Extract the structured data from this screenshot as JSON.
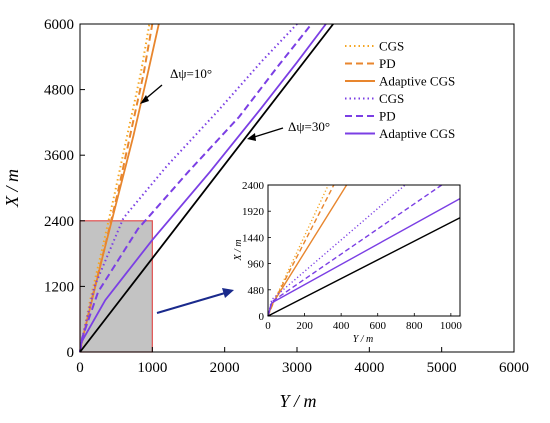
{
  "chart_data": {
    "type": "line",
    "xlabel": "Y / m",
    "ylabel": "X / m",
    "xlim": [
      0,
      6000
    ],
    "ylim": [
      0,
      6000
    ],
    "xticks": [
      "0",
      "1000",
      "2000",
      "3000",
      "4000",
      "5000",
      "6000"
    ],
    "yticks": [
      "0",
      "1200",
      "2400",
      "3600",
      "4800",
      "6000"
    ],
    "legend_position": "top-right",
    "legend": [
      {
        "label": "CGS",
        "style": "dotted",
        "color": "#F5A623"
      },
      {
        "label": "PD",
        "style": "dashed",
        "color": "#E8862E"
      },
      {
        "label": "Adaptive CGS",
        "style": "solid",
        "color": "#E8862E"
      },
      {
        "label": "CGS",
        "style": "dotted",
        "color": "#7B3FE4"
      },
      {
        "label": "PD",
        "style": "dashed",
        "color": "#7B3FE4"
      },
      {
        "label": "Adaptive CGS",
        "style": "solid",
        "color": "#7B3FE4"
      }
    ],
    "annotations": [
      {
        "text": "Δψ=10°",
        "points_to": "orange group"
      },
      {
        "text": "Δψ=30°",
        "points_to": "purple group"
      }
    ],
    "series": [
      {
        "group": "Δψ=10°",
        "label": "CGS",
        "style": "dotted",
        "color": "#F5A623",
        "x": [
          0,
          50,
          150,
          310,
          480,
          660,
          840,
          960
        ],
        "y": [
          0,
          360,
          1000,
          1900,
          2900,
          4000,
          5100,
          6000
        ]
      },
      {
        "group": "Δψ=10°",
        "label": "PD",
        "style": "dashed",
        "color": "#E8862E",
        "x": [
          0,
          60,
          170,
          340,
          520,
          700,
          880,
          1000
        ],
        "y": [
          0,
          360,
          1000,
          1900,
          2900,
          4000,
          5100,
          6000
        ]
      },
      {
        "group": "Δψ=10°",
        "label": "Adaptive CGS",
        "style": "solid",
        "color": "#E8862E",
        "x": [
          0,
          30,
          150,
          320,
          520,
          740,
          930,
          1090
        ],
        "y": [
          0,
          220,
          860,
          1780,
          2820,
          3960,
          5060,
          6000
        ]
      },
      {
        "group": "Δψ=30°",
        "label": "CGS",
        "style": "dotted",
        "color": "#7B3FE4",
        "x": [
          0,
          40,
          200,
          600,
          1200,
          1900,
          2500,
          3000
        ],
        "y": [
          0,
          300,
          1200,
          2450,
          3400,
          4400,
          5300,
          6000
        ]
      },
      {
        "group": "Δψ=30°",
        "label": "PD",
        "style": "dashed",
        "color": "#7B3FE4",
        "x": [
          0,
          30,
          250,
          800,
          1500,
          2200,
          2750,
          3200
        ],
        "y": [
          0,
          260,
          1100,
          2250,
          3300,
          4300,
          5250,
          6000
        ]
      },
      {
        "group": "Δψ=30°",
        "label": "Adaptive CGS",
        "style": "solid",
        "color": "#7B3FE4",
        "x": [
          0,
          20,
          350,
          1000,
          1800,
          2500,
          3000,
          3400
        ],
        "y": [
          0,
          180,
          950,
          2050,
          3300,
          4450,
          5300,
          6000
        ]
      },
      {
        "group": "reference",
        "label": "",
        "style": "solid",
        "color": "#000000",
        "x": [
          0,
          3500
        ],
        "y": [
          0,
          6000
        ]
      }
    ],
    "inset": {
      "xlabel": "Y / m",
      "ylabel": "X / m",
      "xlim": [
        0,
        1050
      ],
      "ylim": [
        0,
        2400
      ],
      "xticks": [
        "0",
        "200",
        "400",
        "600",
        "800",
        "1000"
      ],
      "yticks": [
        "0",
        "480",
        "960",
        "1440",
        "1920",
        "2400"
      ],
      "zoom_region_xlim": [
        0,
        1000
      ],
      "zoom_region_ylim": [
        0,
        2400
      ],
      "series": [
        {
          "label": "CGS",
          "style": "dotted",
          "color": "#F5A623",
          "x": [
            0,
            30,
            330
          ],
          "y": [
            0,
            250,
            2400
          ]
        },
        {
          "label": "PD",
          "style": "dashed",
          "color": "#E8862E",
          "x": [
            0,
            30,
            360
          ],
          "y": [
            0,
            250,
            2400
          ]
        },
        {
          "label": "Adaptive CGS",
          "style": "solid",
          "color": "#E8862E",
          "x": [
            0,
            20,
            430
          ],
          "y": [
            0,
            200,
            2400
          ]
        },
        {
          "label": "CGS",
          "style": "dotted",
          "color": "#7B3FE4",
          "x": [
            0,
            20,
            750
          ],
          "y": [
            0,
            300,
            2400
          ]
        },
        {
          "label": "PD",
          "style": "dashed",
          "color": "#7B3FE4",
          "x": [
            0,
            20,
            950
          ],
          "y": [
            0,
            260,
            2400
          ]
        },
        {
          "label": "Adaptive CGS",
          "style": "solid",
          "color": "#7B3FE4",
          "x": [
            0,
            20,
            1050
          ],
          "y": [
            0,
            240,
            2150
          ]
        },
        {
          "label": "",
          "style": "solid",
          "color": "#000000",
          "x": [
            0,
            1050
          ],
          "y": [
            0,
            1800
          ]
        }
      ]
    }
  }
}
